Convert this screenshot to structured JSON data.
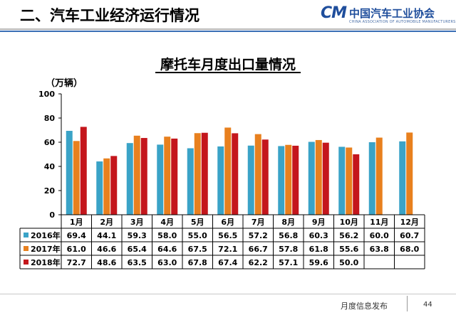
{
  "header": {
    "section_title": "二、汽车工业经济运行情况",
    "logo_mark": "CM",
    "logo_text": "中国汽车工业协会",
    "logo_subtitle": "CHINA ASSOCIATION OF AUTOMOBILE MANUFACTURERS"
  },
  "footer": {
    "label": "月度信息发布",
    "page_number": "44"
  },
  "chart_data": {
    "type": "bar",
    "title": "摩托车月度出口量情况",
    "unit": "（万辆）",
    "ylim": [
      0,
      100
    ],
    "yticks": [
      0,
      20,
      40,
      60,
      80,
      100
    ],
    "categories": [
      "1月",
      "2月",
      "3月",
      "4月",
      "5月",
      "6月",
      "7月",
      "8月",
      "9月",
      "10月",
      "11月",
      "12月"
    ],
    "series": [
      {
        "name": "2016年",
        "color": "#3aa3c7",
        "values": [
          69.4,
          44.1,
          59.3,
          58.0,
          55.0,
          56.5,
          57.2,
          56.8,
          60.3,
          56.2,
          60.0,
          60.7
        ],
        "labels": [
          "69.4",
          "44.1",
          "59.3",
          "58.0",
          "55.0",
          "56.5",
          "57.2",
          "56.8",
          "60.3",
          "56.2",
          "60.0",
          "60.7"
        ]
      },
      {
        "name": "2017年",
        "color": "#e8801e",
        "values": [
          61.0,
          46.6,
          65.4,
          64.6,
          67.5,
          72.1,
          66.7,
          57.8,
          61.8,
          55.6,
          63.8,
          68.0
        ],
        "labels": [
          "61.0",
          "46.6",
          "65.4",
          "64.6",
          "67.5",
          "72.1",
          "66.7",
          "57.8",
          "61.8",
          "55.6",
          "63.8",
          "68.0"
        ]
      },
      {
        "name": "2018年",
        "color": "#c4161c",
        "values": [
          72.7,
          48.6,
          63.5,
          63.0,
          67.8,
          67.4,
          62.2,
          57.1,
          59.6,
          50.0,
          null,
          null
        ],
        "labels": [
          "72.7",
          "48.6",
          "63.5",
          "63.0",
          "67.8",
          "67.4",
          "62.2",
          "57.1",
          "59.6",
          "50.0",
          "",
          ""
        ]
      }
    ]
  }
}
